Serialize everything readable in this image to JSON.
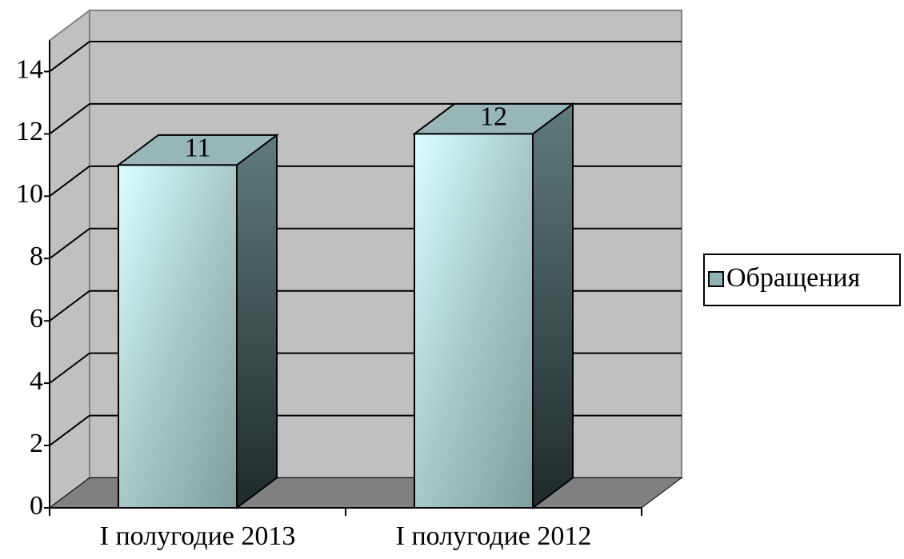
{
  "chart_data": {
    "type": "bar3d",
    "categories": [
      "I полугодие 2013",
      "I полугодие 2012"
    ],
    "series": [
      {
        "name": "Обращения",
        "color": "#8fb3b3",
        "values": [
          11,
          12
        ]
      }
    ],
    "ylim": [
      0,
      15
    ],
    "yticks": [
      0,
      2,
      4,
      6,
      8,
      10,
      12,
      14
    ],
    "grid": true,
    "legend": "right"
  }
}
